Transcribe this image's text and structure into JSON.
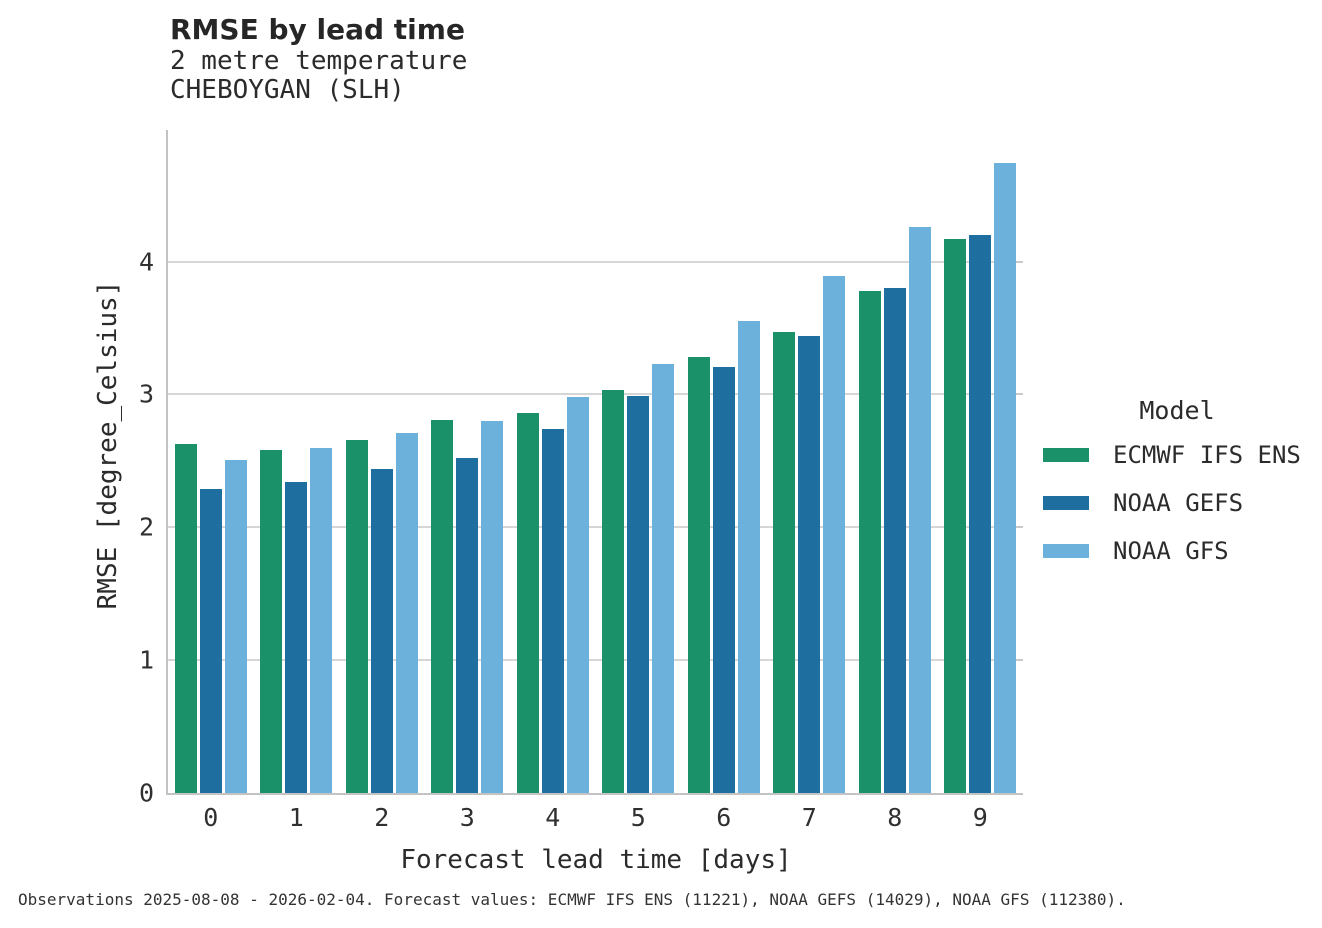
{
  "header": {
    "title": "RMSE by lead time",
    "subtitle_line1": "2 metre temperature",
    "subtitle_line2": "CHEBOYGAN (SLH)"
  },
  "chart_data": {
    "type": "bar",
    "title": "RMSE by lead time",
    "subtitle": [
      "2 metre temperature",
      "CHEBOYGAN (SLH)"
    ],
    "categories": [
      "0",
      "1",
      "2",
      "3",
      "4",
      "5",
      "6",
      "7",
      "8",
      "9"
    ],
    "series": [
      {
        "name": "ECMWF IFS ENS",
        "color": "#1A9169",
        "values": [
          2.63,
          2.58,
          2.66,
          2.81,
          2.86,
          3.03,
          3.28,
          3.47,
          3.78,
          4.17
        ]
      },
      {
        "name": "NOAA GEFS",
        "color": "#1E6F9F",
        "values": [
          2.29,
          2.34,
          2.44,
          2.52,
          2.74,
          2.99,
          3.21,
          3.44,
          3.8,
          4.2
        ]
      },
      {
        "name": "NOAA GFS",
        "color": "#6CB1DC",
        "values": [
          2.51,
          2.6,
          2.71,
          2.8,
          2.98,
          3.23,
          3.55,
          3.89,
          4.26,
          4.74
        ]
      }
    ],
    "xlabel": "Forecast lead time [days]",
    "ylabel": "RMSE [degree_Celsius]",
    "yticks": [
      0,
      1,
      2,
      3,
      4
    ],
    "ylim": [
      0,
      4.99
    ],
    "grid": "horizontal",
    "legend": {
      "title": "Model",
      "position": "right"
    }
  },
  "footer": {
    "caption": "Observations 2025-08-08 - 2026-02-04. Forecast values: ECMWF IFS ENS (11221), NOAA GEFS (14029), NOAA GFS (112380)."
  },
  "colors": {
    "grid": "#D6D6D6",
    "spine": "#C3C3C3"
  }
}
